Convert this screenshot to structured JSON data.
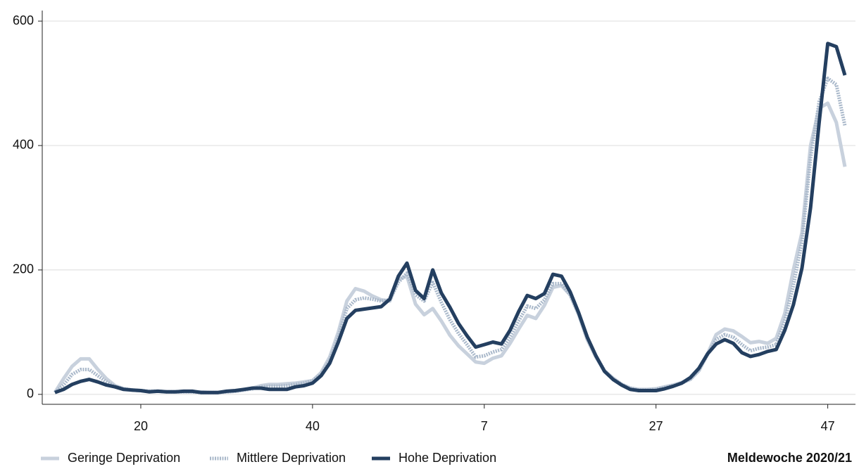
{
  "chart_data": {
    "type": "line",
    "categories": [
      null,
      null,
      null,
      null,
      null,
      null,
      null,
      null,
      null,
      null,
      "20",
      null,
      null,
      null,
      null,
      null,
      null,
      null,
      null,
      null,
      null,
      null,
      null,
      null,
      null,
      null,
      null,
      null,
      null,
      null,
      "40",
      null,
      null,
      null,
      null,
      null,
      null,
      null,
      null,
      null,
      null,
      null,
      null,
      null,
      null,
      null,
      null,
      null,
      null,
      null,
      "7",
      null,
      null,
      null,
      null,
      null,
      null,
      null,
      null,
      null,
      null,
      null,
      null,
      null,
      null,
      null,
      null,
      null,
      null,
      null,
      "27",
      null,
      null,
      null,
      null,
      null,
      null,
      null,
      null,
      null,
      null,
      null,
      null,
      null,
      null,
      null,
      null,
      null,
      null,
      null,
      "47",
      null,
      null
    ],
    "series": [
      {
        "name": "Geringe Deprivation",
        "color": "#c8d1dd",
        "style": "solid",
        "values": [
          3,
          25,
          45,
          57,
          57,
          40,
          25,
          14,
          9,
          7,
          6,
          5,
          5,
          4,
          4,
          4,
          4,
          4,
          3,
          3,
          4,
          5,
          7,
          10,
          14,
          16,
          16,
          17,
          18,
          20,
          22,
          35,
          60,
          100,
          150,
          170,
          166,
          158,
          152,
          150,
          185,
          190,
          145,
          128,
          138,
          118,
          95,
          78,
          65,
          52,
          50,
          58,
          62,
          82,
          105,
          127,
          122,
          143,
          172,
          175,
          160,
          128,
          88,
          60,
          38,
          26,
          16,
          10,
          8,
          8,
          9,
          12,
          15,
          19,
          24,
          38,
          65,
          96,
          105,
          102,
          93,
          83,
          85,
          82,
          90,
          130,
          200,
          260,
          400,
          460,
          468,
          437,
          366
        ]
      },
      {
        "name": "Mittlere Deprivation",
        "color": "#a9b8ca",
        "style": "dotted",
        "values": [
          3,
          15,
          32,
          40,
          40,
          30,
          20,
          13,
          9,
          7,
          6,
          5,
          5,
          4,
          4,
          4,
          4,
          3,
          3,
          3,
          4,
          5,
          7,
          9,
          12,
          13,
          13,
          14,
          16,
          18,
          22,
          33,
          55,
          92,
          138,
          152,
          155,
          153,
          150,
          152,
          180,
          195,
          160,
          150,
          180,
          148,
          120,
          98,
          80,
          60,
          62,
          68,
          72,
          92,
          118,
          142,
          138,
          152,
          178,
          178,
          160,
          130,
          90,
          62,
          38,
          25,
          16,
          10,
          7,
          7,
          8,
          11,
          14,
          18,
          25,
          40,
          64,
          88,
          96,
          92,
          80,
          70,
          74,
          76,
          80,
          118,
          175,
          245,
          380,
          470,
          508,
          498,
          432
        ]
      },
      {
        "name": "Hohe Deprivation",
        "color": "#243f60",
        "style": "solid",
        "values": [
          3,
          8,
          16,
          21,
          24,
          20,
          15,
          12,
          8,
          7,
          6,
          4,
          5,
          4,
          4,
          5,
          5,
          3,
          3,
          3,
          5,
          6,
          8,
          10,
          10,
          8,
          8,
          8,
          12,
          14,
          18,
          30,
          50,
          84,
          122,
          135,
          137,
          139,
          141,
          153,
          190,
          211,
          167,
          154,
          200,
          163,
          140,
          114,
          94,
          76,
          80,
          84,
          81,
          103,
          133,
          159,
          154,
          162,
          193,
          190,
          165,
          131,
          92,
          62,
          37,
          24,
          15,
          8,
          6,
          6,
          6,
          9,
          13,
          18,
          27,
          42,
          65,
          81,
          88,
          82,
          67,
          61,
          64,
          69,
          72,
          103,
          144,
          203,
          300,
          437,
          564,
          559,
          513
        ]
      }
    ],
    "ylim": [
      -16,
      617
    ],
    "yticks": [
      0,
      200,
      400,
      600
    ],
    "grid": true,
    "xlabel": "Meldewoche 2020/21"
  }
}
